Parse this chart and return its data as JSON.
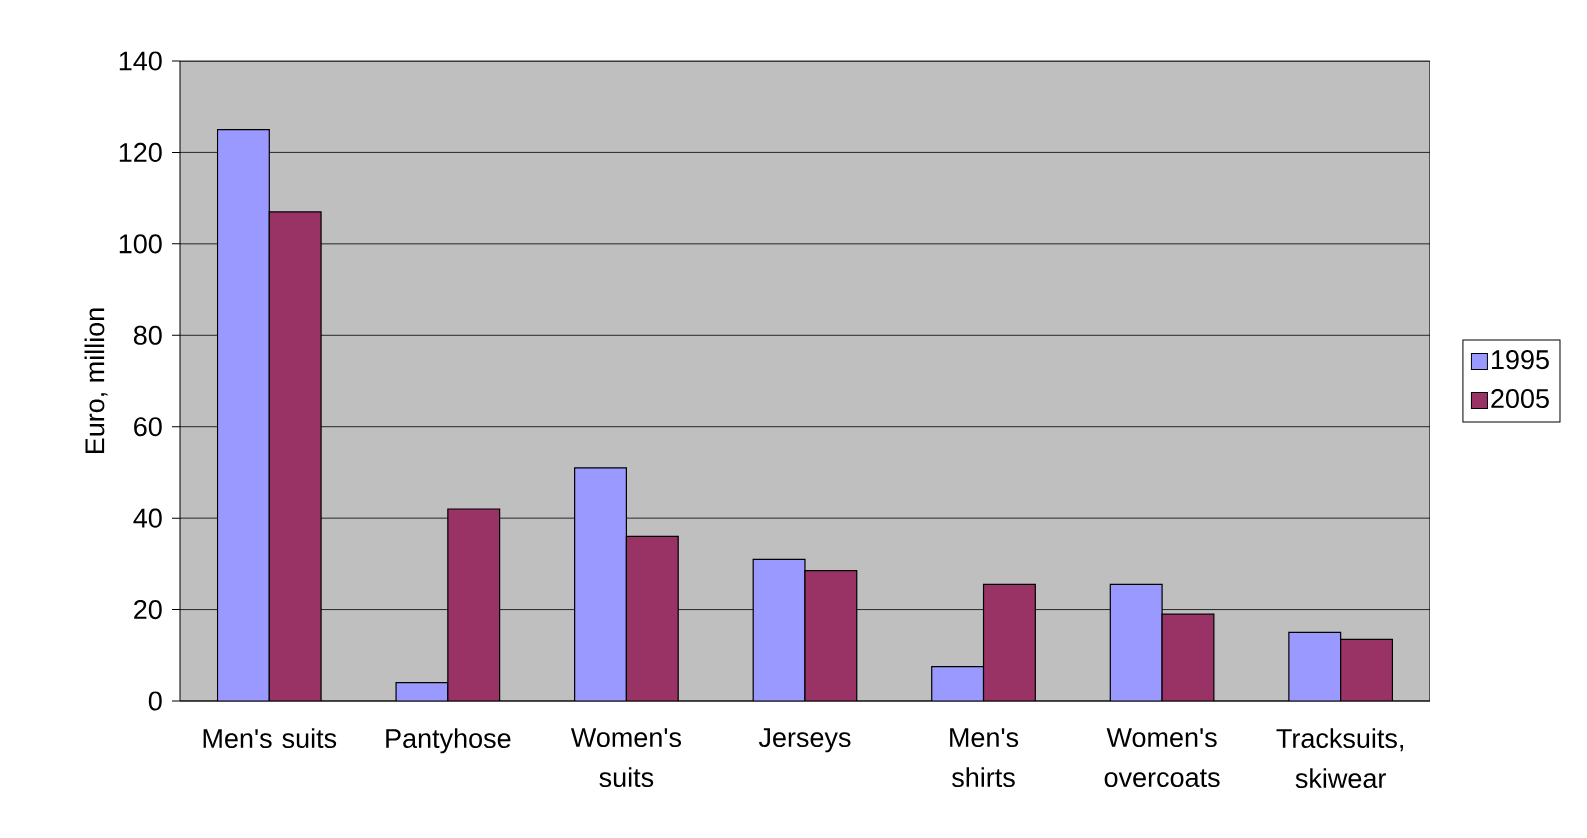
{
  "chart_data": {
    "type": "bar",
    "ylabel": "Euro, million",
    "categories": [
      "Men's suits",
      "Pantyhose",
      "Women's suits",
      "Jerseys",
      "Men's shirts",
      "Women's overcoats",
      "Tracksuits, skiwear"
    ],
    "series": [
      {
        "name": "1995",
        "color": "#9999ff",
        "values": [
          125,
          4,
          51,
          31,
          7.5,
          25.5,
          15
        ]
      },
      {
        "name": "2005",
        "color": "#993366",
        "values": [
          107,
          42,
          36,
          28.5,
          25.5,
          19,
          13.5
        ]
      }
    ],
    "ylim": [
      0,
      140
    ],
    "yticks": [
      0,
      20,
      40,
      60,
      80,
      100,
      120,
      140
    ],
    "grid": "y",
    "legend": "right"
  }
}
